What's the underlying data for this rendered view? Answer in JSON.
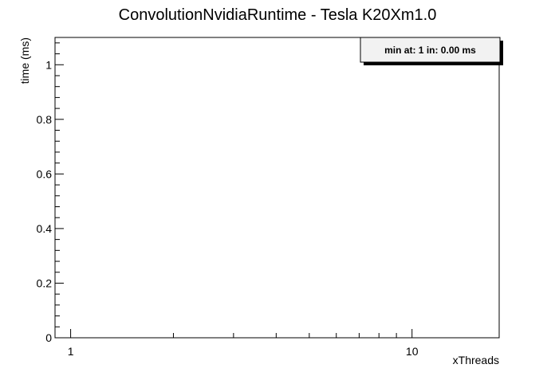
{
  "chart_data": {
    "type": "line",
    "title": "ConvolutionNvidiaRuntime - Tesla K20Xm1.0",
    "xlabel": "xThreads",
    "ylabel": "time (ms)",
    "x_scale": "log",
    "xlim": [
      0.9,
      18
    ],
    "ylim": [
      0,
      1.1
    ],
    "x_ticks": [
      {
        "value": 1,
        "label": "1"
      },
      {
        "value": 10,
        "label": "10"
      }
    ],
    "y_ticks": [
      {
        "value": 0,
        "label": "0"
      },
      {
        "value": 0.2,
        "label": "0.2"
      },
      {
        "value": 0.4,
        "label": "0.4"
      },
      {
        "value": 0.6,
        "label": "0.6"
      },
      {
        "value": 0.8,
        "label": "0.8"
      },
      {
        "value": 1,
        "label": "1"
      }
    ],
    "series": [],
    "stats_box": {
      "text": "min at: 1 in: 0.00 ms"
    },
    "grid": false
  }
}
